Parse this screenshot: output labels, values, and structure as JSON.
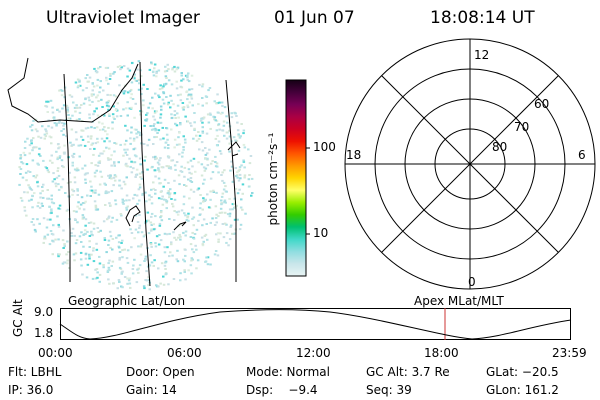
{
  "header": {
    "instrument": "Ultraviolet Imager",
    "date": "01 Jun 07",
    "time": "18:08:14 UT"
  },
  "colorbar": {
    "unit_label": "photon cm⁻²s⁻¹",
    "ticks": [
      "100",
      "10"
    ],
    "scale": "log",
    "colors": [
      "#e8f4f4",
      "#c9e6ea",
      "#8fdde0",
      "#3fd8c8",
      "#00c070",
      "#33cc00",
      "#99ee00",
      "#ffff66",
      "#ffd400",
      "#ff9900",
      "#ff5500",
      "#ee1100",
      "#cc0022",
      "#aa0044",
      "#770055",
      "#44003a",
      "#150015"
    ]
  },
  "polar_plot": {
    "mlt_labels": {
      "top": "12",
      "left": "18",
      "right": "6",
      "bottom": "0"
    },
    "lat_labels": [
      "60",
      "70",
      "80"
    ]
  },
  "altitude_plot": {
    "left_title": "Geographic Lat/Lon",
    "right_title": "Apex MLat/MLT",
    "ylabel": "GC Alt",
    "yticks": [
      "9.0",
      "1.8"
    ],
    "xticks": [
      "00:00",
      "06:00",
      "12:00",
      "18:00",
      "23:59"
    ],
    "marker_color": "#cc3333"
  },
  "info": {
    "flt": "Flt: LBHL",
    "door": "Door: Open",
    "mode": "Mode: Normal",
    "gc_alt": "GC Alt: 3.7 Re",
    "glat": "GLat: −20.5",
    "ip": "IP: 36.0",
    "gain": "Gain: 14",
    "dsp": "Dsp:    −9.4",
    "seq": "Seq: 39",
    "glon": "GLon: 161.2"
  }
}
